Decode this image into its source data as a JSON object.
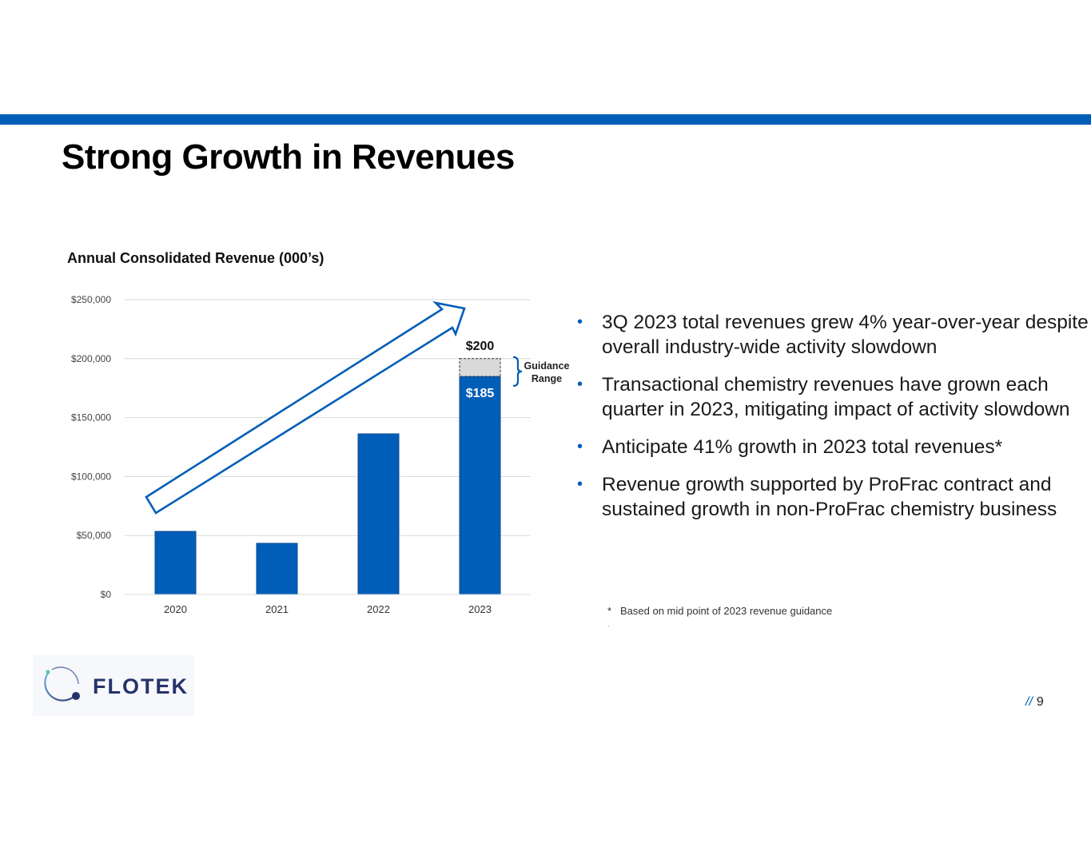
{
  "slide": {
    "title": "Strong Growth in Revenues",
    "page_number": "9",
    "page_prefix": "//",
    "brand_color": "#005EB8",
    "logo_text": "FLOTEK"
  },
  "bullets": [
    "3Q 2023 total revenues grew 4% year-over-year despite overall industry-wide activity slowdown",
    "Transactional chemistry revenues have grown each quarter in 2023, mitigating impact of activity slowdown",
    "Anticipate 41% growth in 2023 total revenues*",
    "Revenue growth supported by ProFrac contract and sustained growth in non-ProFrac chemistry business"
  ],
  "footnote": {
    "marker": "*",
    "text": "Based on mid point of 2023 revenue guidance",
    "trailing_mark": "."
  },
  "chart_data": {
    "type": "bar",
    "title": "Annual Consolidated Revenue (000’s)",
    "xlabel": "",
    "ylabel": "",
    "categories": [
      "2020",
      "2021",
      "2022",
      "2023"
    ],
    "series": [
      {
        "name": "Revenue",
        "values": [
          53500,
          43400,
          136200,
          185000
        ],
        "color": "#005EB8"
      },
      {
        "name": "Guidance Range",
        "values": [
          0,
          0,
          0,
          15000
        ],
        "color": "#D9D9D9",
        "stacked_on": "Revenue",
        "style": "dashed-border"
      }
    ],
    "ylim": [
      0,
      250000
    ],
    "yticks": [
      0,
      50000,
      100000,
      150000,
      200000,
      250000
    ],
    "ytick_labels": [
      "$0",
      "$50,000",
      "$100,000",
      "$150,000",
      "$200,000",
      "$250,000"
    ],
    "grid": true,
    "legend": "none",
    "annotations": {
      "guidance_low_label": "$185",
      "guidance_high_label": "$200",
      "guidance_bracket_label_line1": "Guidance",
      "guidance_bracket_label_line2": "Range",
      "trend_arrow": "growth trend arrow from 2020 to 2023"
    }
  }
}
